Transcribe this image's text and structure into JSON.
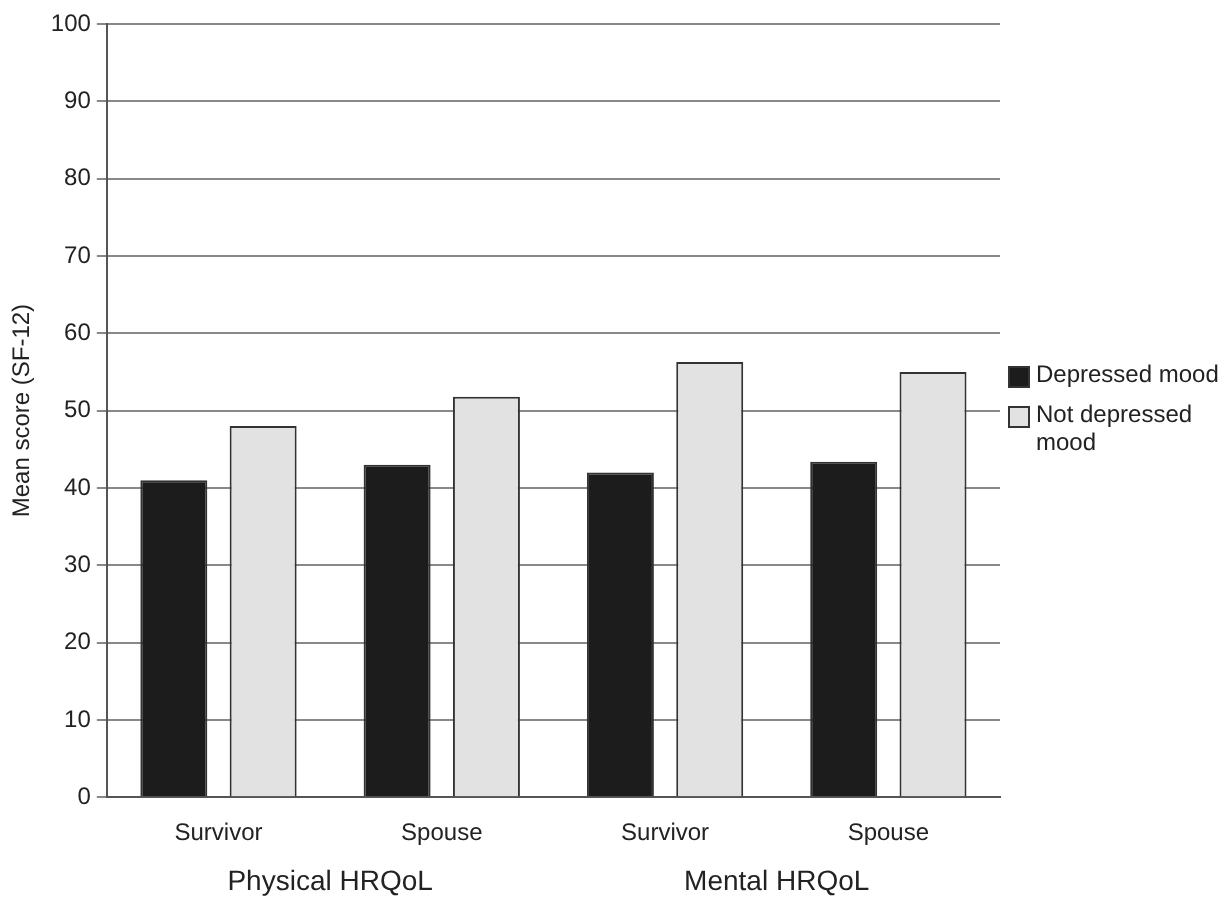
{
  "chart_data": {
    "type": "bar",
    "ylabel": "Mean score (SF-12)",
    "categories": [
      "Survivor",
      "Spouse",
      "Survivor",
      "Spouse"
    ],
    "series": [
      {
        "name": "Depressed mood",
        "color": "#1c1c1c",
        "values": [
          41,
          43,
          42,
          43.4
        ]
      },
      {
        "name": "Not depressed mood",
        "color": "#e2e2e2",
        "values": [
          48,
          51.8,
          56.3,
          55
        ]
      }
    ],
    "ylim": [
      0,
      100
    ],
    "yticks": [
      0,
      10,
      20,
      30,
      40,
      50,
      60,
      70,
      80,
      90,
      100
    ],
    "grid": "y",
    "legend": "right",
    "annotations": [
      "Physical HRQoL",
      "Mental HRQoL"
    ]
  }
}
